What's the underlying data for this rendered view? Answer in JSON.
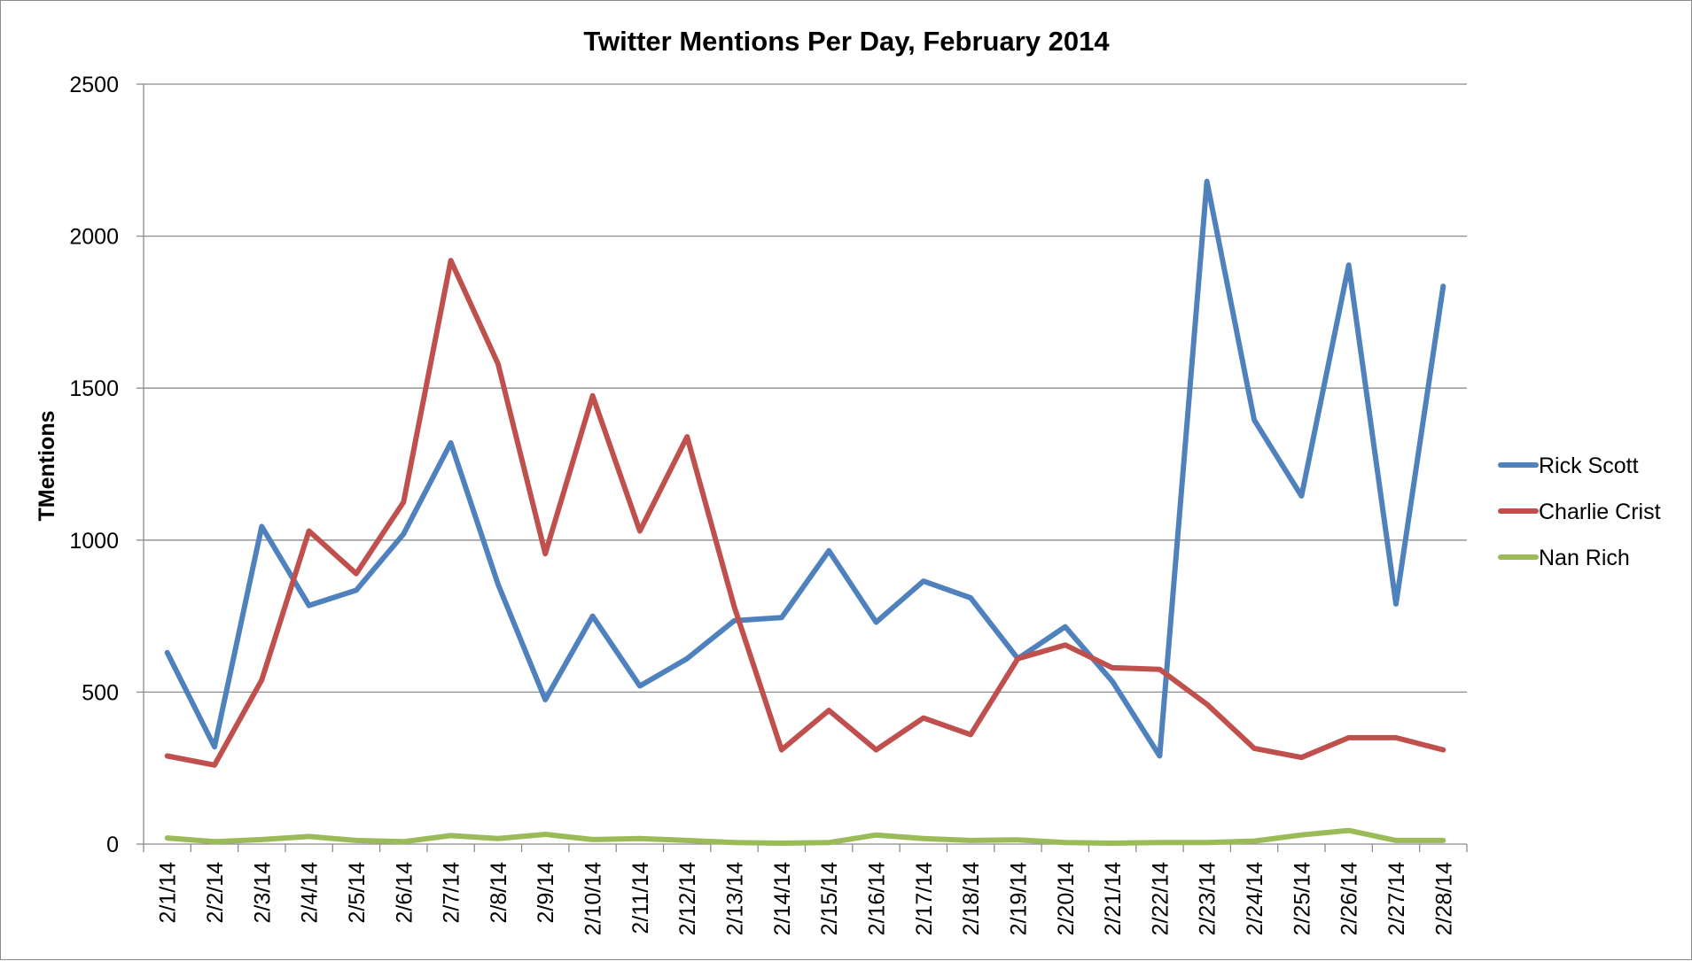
{
  "chart_data": {
    "type": "line",
    "title": "Twitter Mentions Per Day, February 2014",
    "xlabel": "",
    "ylabel": "TMentions",
    "ylim": [
      0,
      2500
    ],
    "yticks": [
      0,
      500,
      1000,
      1500,
      2000,
      2500
    ],
    "grid": true,
    "legend_position": "right",
    "categories": [
      "2/1/14",
      "2/2/14",
      "2/3/14",
      "2/4/14",
      "2/5/14",
      "2/6/14",
      "2/7/14",
      "2/8/14",
      "2/9/14",
      "2/10/14",
      "2/11/14",
      "2/12/14",
      "2/13/14",
      "2/14/14",
      "2/15/14",
      "2/16/14",
      "2/17/14",
      "2/18/14",
      "2/19/14",
      "2/20/14",
      "2/21/14",
      "2/22/14",
      "2/23/14",
      "2/24/14",
      "2/25/14",
      "2/26/14",
      "2/27/14",
      "2/28/14"
    ],
    "series": [
      {
        "name": "Rick Scott",
        "color": "#4f81bd",
        "values": [
          630,
          320,
          1045,
          785,
          835,
          1020,
          1320,
          855,
          475,
          750,
          520,
          610,
          735,
          745,
          965,
          730,
          865,
          810,
          610,
          715,
          535,
          290,
          2180,
          1395,
          1145,
          1905,
          790,
          1835
        ]
      },
      {
        "name": "Charlie Crist",
        "color": "#c0504d",
        "values": [
          290,
          260,
          540,
          1030,
          890,
          1125,
          1920,
          1580,
          955,
          1475,
          1030,
          1340,
          780,
          310,
          440,
          310,
          415,
          360,
          610,
          655,
          580,
          575,
          460,
          315,
          285,
          350,
          350,
          310
        ]
      },
      {
        "name": "Nan Rich",
        "color": "#9bbb59",
        "values": [
          20,
          8,
          15,
          25,
          12,
          8,
          28,
          18,
          32,
          15,
          18,
          12,
          5,
          3,
          5,
          30,
          18,
          12,
          14,
          5,
          3,
          5,
          5,
          10,
          30,
          45,
          12,
          12
        ]
      }
    ]
  }
}
